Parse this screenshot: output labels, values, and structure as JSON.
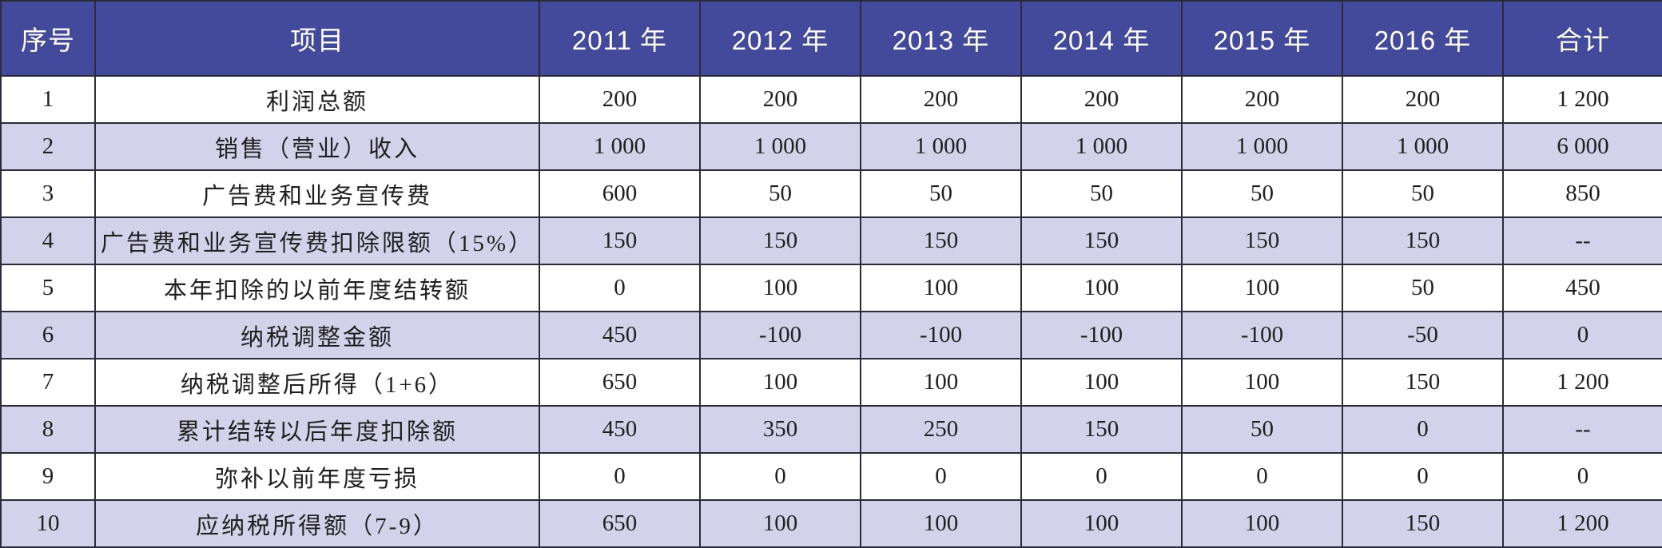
{
  "table": {
    "headers": [
      "序号",
      "项目",
      "2011 年",
      "2012 年",
      "2013 年",
      "2014 年",
      "2015 年",
      "2016 年",
      "合计"
    ],
    "rows": [
      [
        "1",
        "利润总额",
        "200",
        "200",
        "200",
        "200",
        "200",
        "200",
        "1 200"
      ],
      [
        "2",
        "销售（营业）收入",
        "1 000",
        "1 000",
        "1 000",
        "1 000",
        "1 000",
        "1 000",
        "6 000"
      ],
      [
        "3",
        "广告费和业务宣传费",
        "600",
        "50",
        "50",
        "50",
        "50",
        "50",
        "850"
      ],
      [
        "4",
        "广告费和业务宣传费扣除限额（15%）",
        "150",
        "150",
        "150",
        "150",
        "150",
        "150",
        "--"
      ],
      [
        "5",
        "本年扣除的以前年度结转额",
        "0",
        "100",
        "100",
        "100",
        "100",
        "50",
        "450"
      ],
      [
        "6",
        "纳税调整金额",
        "450",
        "-100",
        "-100",
        "-100",
        "-100",
        "-50",
        "0"
      ],
      [
        "7",
        "纳税调整后所得（1+6）",
        "650",
        "100",
        "100",
        "100",
        "100",
        "150",
        "1 200"
      ],
      [
        "8",
        "累计结转以后年度扣除额",
        "450",
        "350",
        "250",
        "150",
        "50",
        "0",
        "--"
      ],
      [
        "9",
        "弥补以前年度亏损",
        "0",
        "0",
        "0",
        "0",
        "0",
        "0",
        "0"
      ],
      [
        "10",
        "应纳税所得额（7-9）",
        "650",
        "100",
        "100",
        "100",
        "100",
        "150",
        "1 200"
      ]
    ]
  },
  "colors": {
    "header_bg": "#434a9c",
    "header_text": "#ffffff",
    "stripe_bg": "#d3d2ea",
    "row_bg": "#ffffff",
    "border": "#2b2b3a"
  }
}
